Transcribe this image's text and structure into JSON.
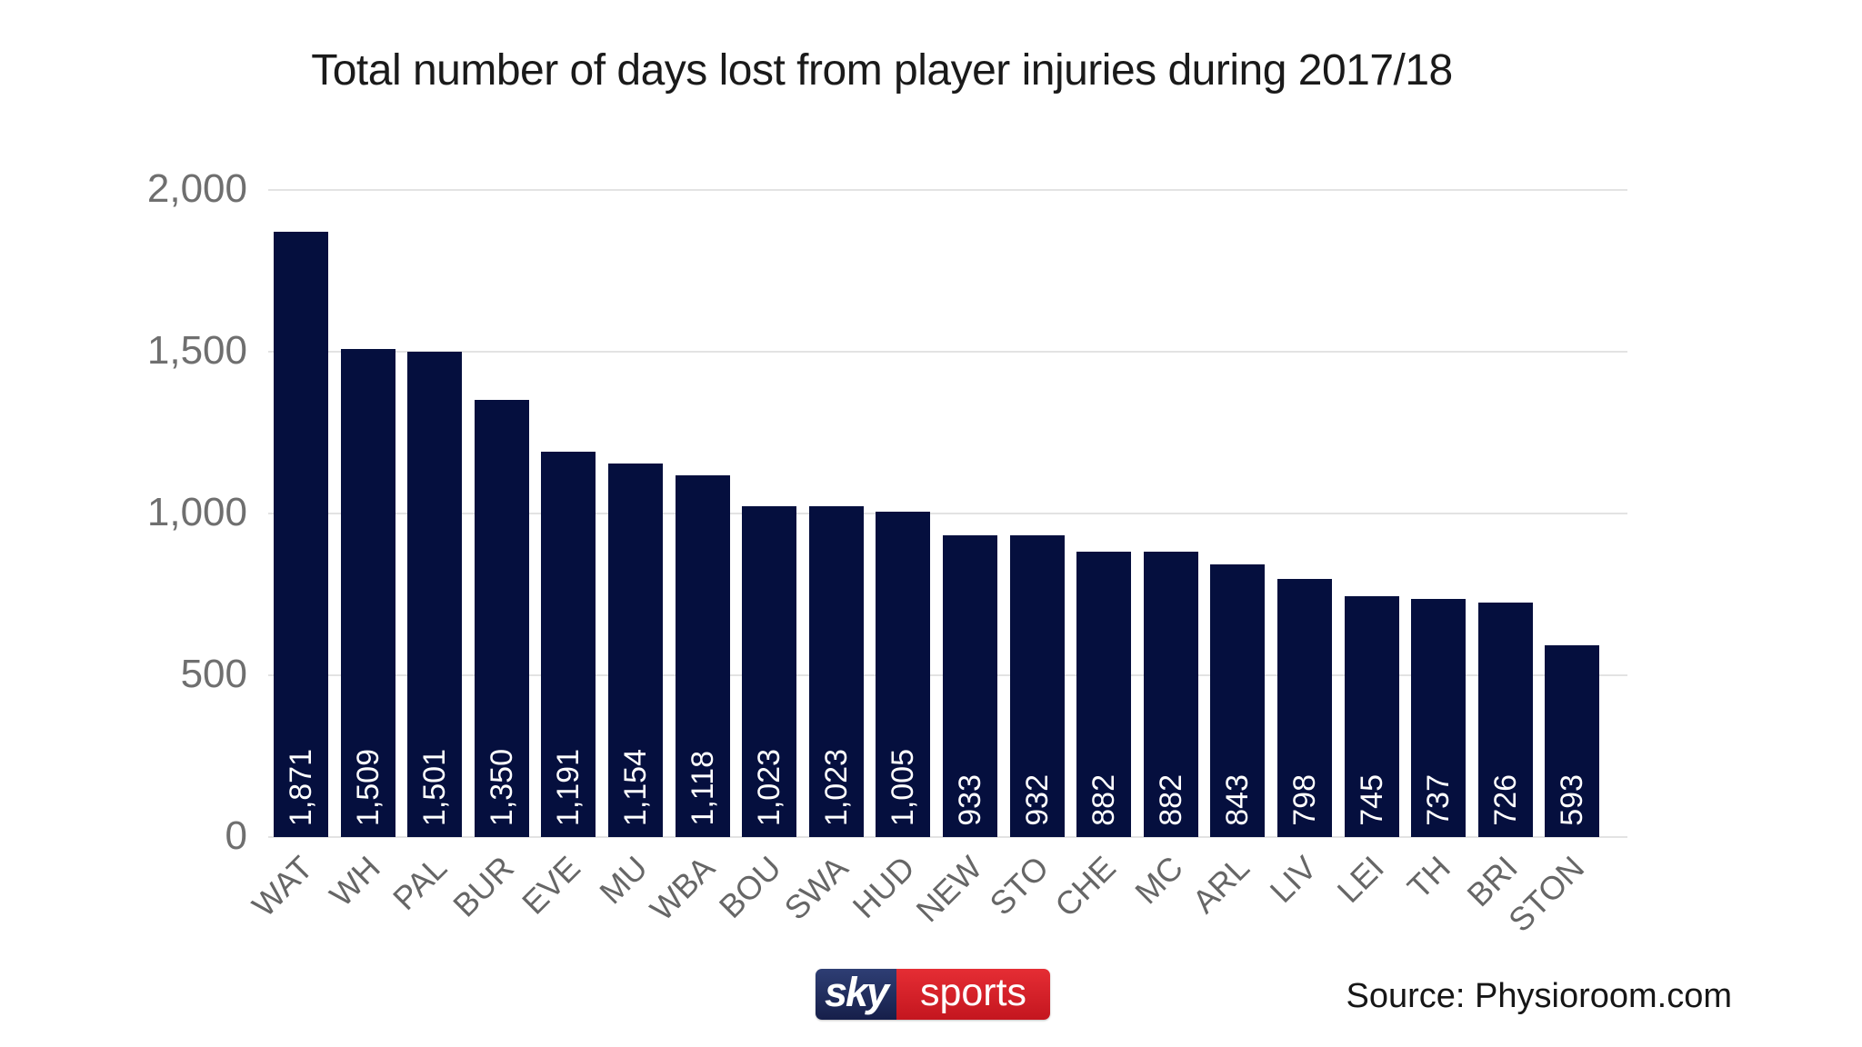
{
  "title": "Total number of days lost from player injuries during 2017/18",
  "source": "Source: Physioroom.com",
  "logo": {
    "sky": "sky",
    "sports": "sports"
  },
  "colors": {
    "bar": "#050f3e",
    "gridline": "#e3e3e3",
    "y_label": "#6f6f6f",
    "x_label": "#666666",
    "bar_value_label": "#ffffff",
    "title_text": "#1a1a1a",
    "logo_navy_top": "#2e3e74",
    "logo_navy_bottom": "#161f4a",
    "logo_red_top": "#e52d34",
    "logo_red_bottom": "#c4161f"
  },
  "chart_data": {
    "type": "bar",
    "title": "Total number of days lost from player injuries during 2017/18",
    "categories": [
      "WAT",
      "WH",
      "PAL",
      "BUR",
      "EVE",
      "MU",
      "WBA",
      "BOU",
      "SWA",
      "HUD",
      "NEW",
      "STO",
      "CHE",
      "MC",
      "ARL",
      "LIV",
      "LEI",
      "TH",
      "BRI",
      "STON"
    ],
    "values": [
      1871,
      1509,
      1501,
      1350,
      1191,
      1154,
      1118,
      1023,
      1023,
      1005,
      933,
      932,
      882,
      882,
      843,
      798,
      745,
      737,
      726,
      593
    ],
    "value_labels": [
      "1,871",
      "1,509",
      "1,501",
      "1,350",
      "1,191",
      "1,154",
      "1,118",
      "1,023",
      "1,023",
      "1,005",
      "933",
      "932",
      "882",
      "882",
      "843",
      "798",
      "745",
      "737",
      "726",
      "593"
    ],
    "xlabel": "",
    "ylabel": "",
    "ylim": [
      0,
      2000
    ],
    "yticks": [
      0,
      500,
      1000,
      1500,
      2000
    ],
    "ytick_labels": [
      "0",
      "500",
      "1,000",
      "1,500",
      "2,000"
    ],
    "grid": true,
    "legend": false,
    "bar_color": "#050f3e",
    "value_labels_position": "inside-bottom-vertical",
    "x_labels_rotation_deg": -45
  }
}
